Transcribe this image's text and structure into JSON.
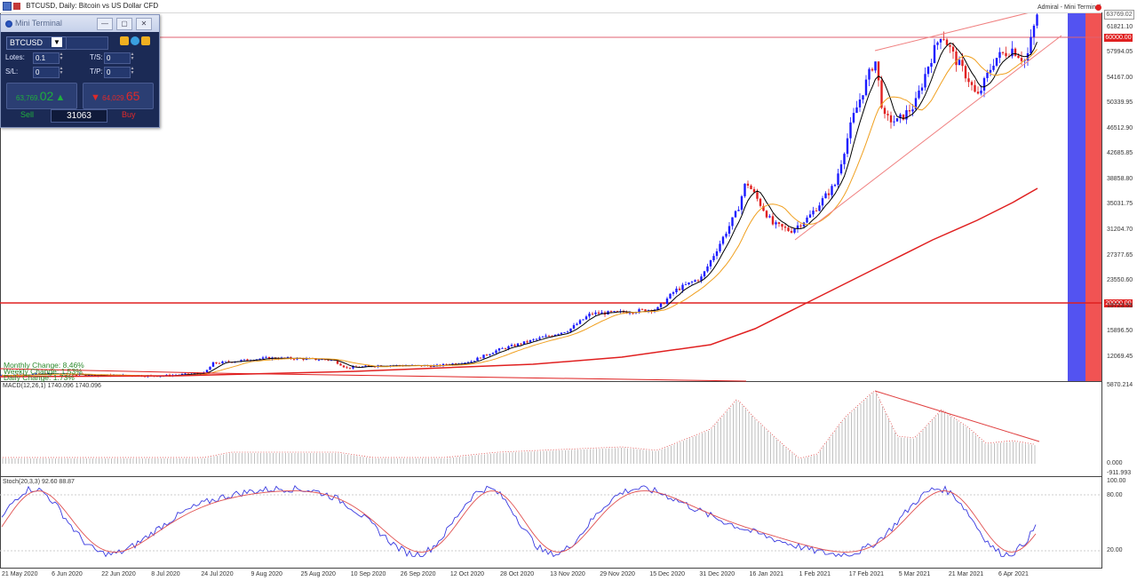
{
  "window": {
    "title": "BTCUSD, Daily:  Bitcoin vs US Dollar CFD",
    "top_right": "Admiral - Mini Terminal"
  },
  "mini_terminal": {
    "title": "Mini Terminal",
    "symbol": "BTCUSD",
    "lots_label": "Lotes:",
    "lots_value": "0.1",
    "sl_label": "S/L:",
    "sl_value": "0",
    "ts_label": "T/S:",
    "ts_value": "0",
    "tp_label": "T/P:",
    "tp_value": "0",
    "sell_price_small": "63,769.",
    "sell_price_big": "02",
    "buy_price_small": "64,029.",
    "buy_price_big": "65",
    "sell_label": "Sell",
    "buy_label": "Buy",
    "lots_counter": "31063"
  },
  "price_axis": {
    "labels": [
      "61821.10",
      "57994.05",
      "54167.00",
      "50339.95",
      "46512.90",
      "42685.85",
      "38858.80",
      "35031.75",
      "31204.70",
      "27377.65",
      "23550.60",
      "19723.55",
      "15896.50",
      "12069.45"
    ],
    "current_tag": "63769.02",
    "tag_60000": "60000.00",
    "tag_20000": "20000.00"
  },
  "changes": {
    "monthly": "Monthly Change: 8.46%",
    "weekly": "Weekly Change: 1.53%",
    "daily": "Daily Change: 1.73%"
  },
  "macd": {
    "label": "MACD(12,26,1) 1740.096 1740.096",
    "axis": [
      "5870.214",
      "0.000",
      "-911.993"
    ]
  },
  "stoch": {
    "label": "Stoch(20,3,3) 92.60 88.87",
    "axis": [
      "100.00",
      "80.00",
      "20.00"
    ]
  },
  "time_axis": [
    "21 May 2020",
    "6 Jun 2020",
    "22 Jun 2020",
    "8 Jul 2020",
    "24 Jul 2020",
    "9 Aug 2020",
    "25 Aug 2020",
    "10 Sep 2020",
    "26 Sep 2020",
    "12 Oct 2020",
    "28 Oct 2020",
    "13 Nov 2020",
    "29 Nov 2020",
    "15 Dec 2020",
    "31 Dec 2020",
    "16 Jan 2021",
    "1 Feb 2021",
    "17 Feb 2021",
    "5 Mar 2021",
    "21 Mar 2021",
    "6 Apr 2021"
  ],
  "colors": {
    "bull": "#1a1aff",
    "bear": "#e02020",
    "ma_fast": "#000000",
    "ma_mid": "#f0a020",
    "ma_slow": "#e02020",
    "terminal_bg": "#1b2a55"
  }
}
